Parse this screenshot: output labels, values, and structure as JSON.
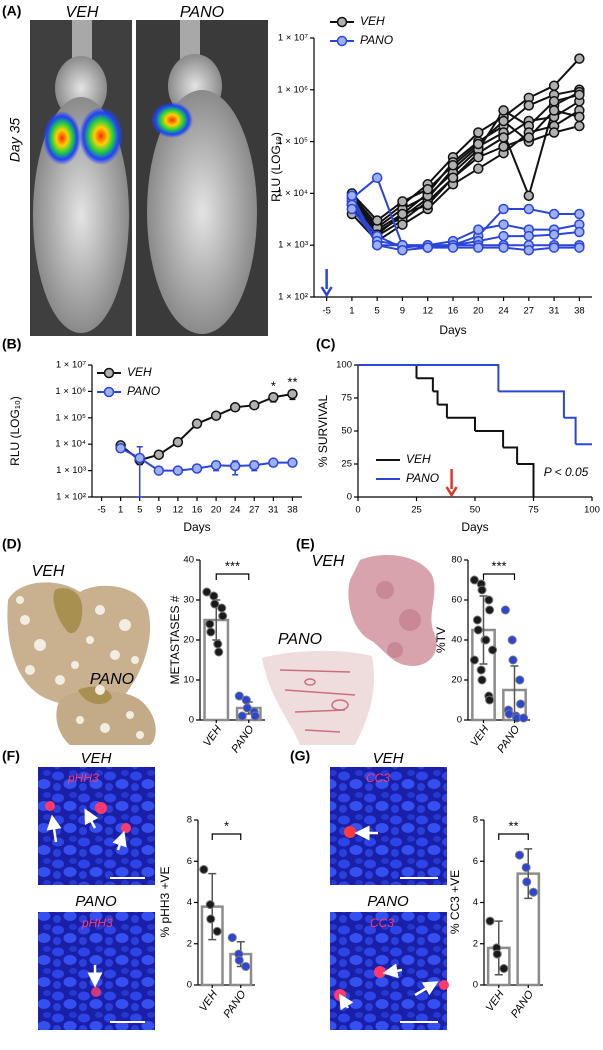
{
  "panel_labels": [
    "(A)",
    "(B)",
    "(C)",
    "(D)",
    "(E)",
    "(F)",
    "(G)"
  ],
  "images": {
    "A": {
      "left": "VEH",
      "right": "PANO",
      "caption": "Day 35"
    },
    "D": {
      "top": "VEH",
      "bottom": "PANO"
    },
    "E": {
      "top": "VEH",
      "bottom": "PANO"
    },
    "F": {
      "top": "VEH",
      "bottom": "PANO",
      "top_stain": "pHH3",
      "bottom_stain": "pHH3"
    },
    "G": {
      "top": "VEH",
      "bottom": "PANO",
      "top_stain": "CC3",
      "bottom_stain": "CC3"
    }
  },
  "chart_data": [
    {
      "type": "line",
      "log_scale": true,
      "x_label": "Days",
      "y_label": "RLU (LOG₁₀)",
      "categories": [
        "-5",
        "1",
        "5",
        "9",
        "12",
        "16",
        "20",
        "24",
        "27",
        "31",
        "38"
      ],
      "ylim": [
        100,
        10000000
      ],
      "yticks": [
        {
          "value": 100,
          "label": "1 × 10²"
        },
        {
          "value": 1000,
          "label": "1 × 10³"
        },
        {
          "value": 10000,
          "label": "1 × 10⁴"
        },
        {
          "value": 100000,
          "label": "1 × 10⁵"
        },
        {
          "value": 1000000,
          "label": "1 × 10⁶"
        },
        {
          "value": 10000000,
          "label": "1 × 10⁷"
        }
      ],
      "arrow_category": "-5",
      "arrow_color": "#2a45d8",
      "series": [
        {
          "name": "VEH",
          "color": "#111111",
          "marker_color": "#b0b0b0",
          "values": [
            [
              null,
              9000,
              2500,
              6000,
              15000,
              50000,
              150000,
              300000,
              700000,
              1200000,
              4000000
            ],
            [
              null,
              7000,
              2000,
              4000,
              10000,
              40000,
              100000,
              200000,
              500000,
              800000,
              1000000
            ],
            [
              null,
              6000,
              1800,
              3500,
              8000,
              30000,
              80000,
              150000,
              9000,
              500000,
              900000
            ],
            [
              null,
              5000,
              1500,
              3000,
              7000,
              20000,
              60000,
              120000,
              250000,
              300000,
              600000
            ],
            [
              null,
              8000,
              2200,
              5000,
              9000,
              25000,
              70000,
              400000,
              200000,
              600000,
              800000
            ],
            [
              null,
              4000,
              1200,
              2500,
              5000,
              15000,
              30000,
              60000,
              150000,
              200000,
              400000
            ],
            [
              null,
              10000,
              3000,
              7000,
              12000,
              35000,
              90000,
              250000,
              100000,
              150000,
              200000
            ],
            [
              null,
              6000,
              1600,
              4000,
              6000,
              20000,
              50000,
              80000,
              120000,
              400000,
              300000
            ]
          ]
        },
        {
          "name": "PANO",
          "color": "#2a45d8",
          "marker_color": "#9fb0f2",
          "values": [
            [
              null,
              8000,
              20000,
              1000,
              1000,
              1000,
              1500,
              5000,
              5000,
              4000,
              4000
            ],
            [
              null,
              7000,
              1000,
              1000,
              1000,
              1200,
              2000,
              2500,
              2000,
              2000,
              2500
            ],
            [
              null,
              6000,
              1500,
              900,
              1000,
              1000,
              1200,
              1500,
              1500,
              1600,
              1800
            ],
            [
              null,
              5000,
              1200,
              1000,
              900,
              1000,
              1000,
              1000,
              1000,
              1000,
              1000
            ],
            [
              null,
              9000,
              1000,
              800,
              900,
              900,
              900,
              900,
              800,
              900,
              900
            ]
          ]
        }
      ]
    },
    {
      "type": "line",
      "log_scale": true,
      "x_label": "Days",
      "y_label": "RLU (LOG₁₀)",
      "categories": [
        "-5",
        "1",
        "5",
        "9",
        "12",
        "16",
        "20",
        "24",
        "27",
        "31",
        "38"
      ],
      "ylim": [
        100,
        10000000
      ],
      "yticks": [
        {
          "value": 100,
          "label": "1 × 10²"
        },
        {
          "value": 1000,
          "label": "1 × 10³"
        },
        {
          "value": 10000,
          "label": "1 × 10⁴"
        },
        {
          "value": 100000,
          "label": "1 × 10⁵"
        },
        {
          "value": 1000000,
          "label": "1 × 10⁶"
        },
        {
          "value": 10000000,
          "label": "1 × 10⁷"
        }
      ],
      "annotations": [
        {
          "text": "*",
          "category": "31"
        },
        {
          "text": "**",
          "category": "38"
        }
      ],
      "series": [
        {
          "name": "VEH",
          "color": "#111111",
          "marker_color": "#b0b0b0",
          "values": [
            null,
            9000,
            2500,
            4000,
            12000,
            60000,
            120000,
            250000,
            300000,
            600000,
            800000
          ],
          "errors": [
            null,
            1500,
            800,
            800,
            2000,
            10000,
            20000,
            50000,
            60000,
            200000,
            300000
          ]
        },
        {
          "name": "PANO",
          "color": "#2a45d8",
          "marker_color": "#9fb0f2",
          "values": [
            null,
            7000,
            3000,
            1000,
            1000,
            1200,
            1600,
            1500,
            1600,
            2000,
            2000
          ],
          "errors": [
            null,
            1000,
            5000,
            200,
            200,
            300,
            600,
            800,
            600,
            500,
            400
          ]
        }
      ]
    },
    {
      "type": "survival",
      "x_label": "Days",
      "y_label": "% SURVIVAL",
      "xlim": [
        0,
        100
      ],
      "xticks": [
        0,
        25,
        50,
        75,
        100
      ],
      "ylim": [
        0,
        100
      ],
      "yticks": [
        0,
        25,
        50,
        75,
        100
      ],
      "annotation": "P < 0.05",
      "arrow_x": 40,
      "arrow_color": "#e53525",
      "series": [
        {
          "name": "VEH",
          "color": "#111111",
          "x": [
            0,
            25,
            32,
            34,
            38,
            50,
            62,
            68,
            75
          ],
          "values": [
            100,
            90,
            80,
            70,
            60,
            50,
            37.5,
            25,
            0
          ]
        },
        {
          "name": "PANO",
          "color": "#2a45d8",
          "x": [
            0,
            60,
            88,
            93,
            100
          ],
          "values": [
            100,
            80,
            60,
            40,
            40
          ]
        }
      ]
    },
    {
      "type": "bar",
      "y_label": "METASTASES #",
      "categories": [
        "VEH",
        "PANO"
      ],
      "values": [
        25,
        3
      ],
      "errors": [
        5,
        1.5
      ],
      "points": [
        [
          32,
          31,
          29,
          28,
          26,
          24,
          22,
          19,
          17
        ],
        [
          6,
          5,
          3,
          2,
          1,
          1
        ]
      ],
      "point_colors": [
        "#1a1a1a",
        "#2a45d8"
      ],
      "bar_color": "#8c8c8c",
      "ylim": [
        0,
        40
      ],
      "yticks": [
        0,
        10,
        20,
        30,
        40
      ],
      "significance": "***"
    },
    {
      "type": "bar",
      "y_label": "%TV",
      "categories": [
        "VEH",
        "PANO"
      ],
      "values": [
        45,
        15
      ],
      "errors": [
        17,
        12
      ],
      "points": [
        [
          70,
          68,
          65,
          60,
          55,
          50,
          45,
          40,
          40,
          35,
          30,
          25,
          20,
          12,
          10
        ],
        [
          55,
          40,
          30,
          20,
          8,
          5,
          3,
          2,
          1,
          1
        ]
      ],
      "point_colors": [
        "#1a1a1a",
        "#2a45d8"
      ],
      "bar_color": "#8c8c8c",
      "ylim": [
        0,
        80
      ],
      "yticks": [
        0,
        20,
        40,
        60,
        80
      ],
      "significance": "***"
    },
    {
      "type": "bar",
      "y_label": "% pHH3 +VE",
      "categories": [
        "VEH",
        "PANO"
      ],
      "values": [
        3.8,
        1.5
      ],
      "errors": [
        1.6,
        0.6
      ],
      "points": [
        [
          5.6,
          3.9,
          3.2,
          2.6
        ],
        [
          2.3,
          1.5,
          1.2,
          0.9
        ]
      ],
      "point_colors": [
        "#1a1a1a",
        "#2a45d8"
      ],
      "bar_color": "#8c8c8c",
      "ylim": [
        0,
        8
      ],
      "yticks": [
        0,
        2,
        4,
        6,
        8
      ],
      "significance": "*"
    },
    {
      "type": "bar",
      "y_label": "% CC3 +VE",
      "categories": [
        "VEH",
        "PANO"
      ],
      "values": [
        1.8,
        5.4
      ],
      "errors": [
        1.3,
        1.2
      ],
      "points": [
        [
          3.1,
          1.8,
          1.5,
          0.8
        ],
        [
          6.3,
          5.7,
          5.0,
          4.5
        ]
      ],
      "point_colors": [
        "#1a1a1a",
        "#2a45d8"
      ],
      "bar_color": "#8c8c8c",
      "ylim": [
        0,
        8
      ],
      "yticks": [
        0,
        2,
        4,
        6,
        8
      ],
      "significance": "**"
    }
  ]
}
